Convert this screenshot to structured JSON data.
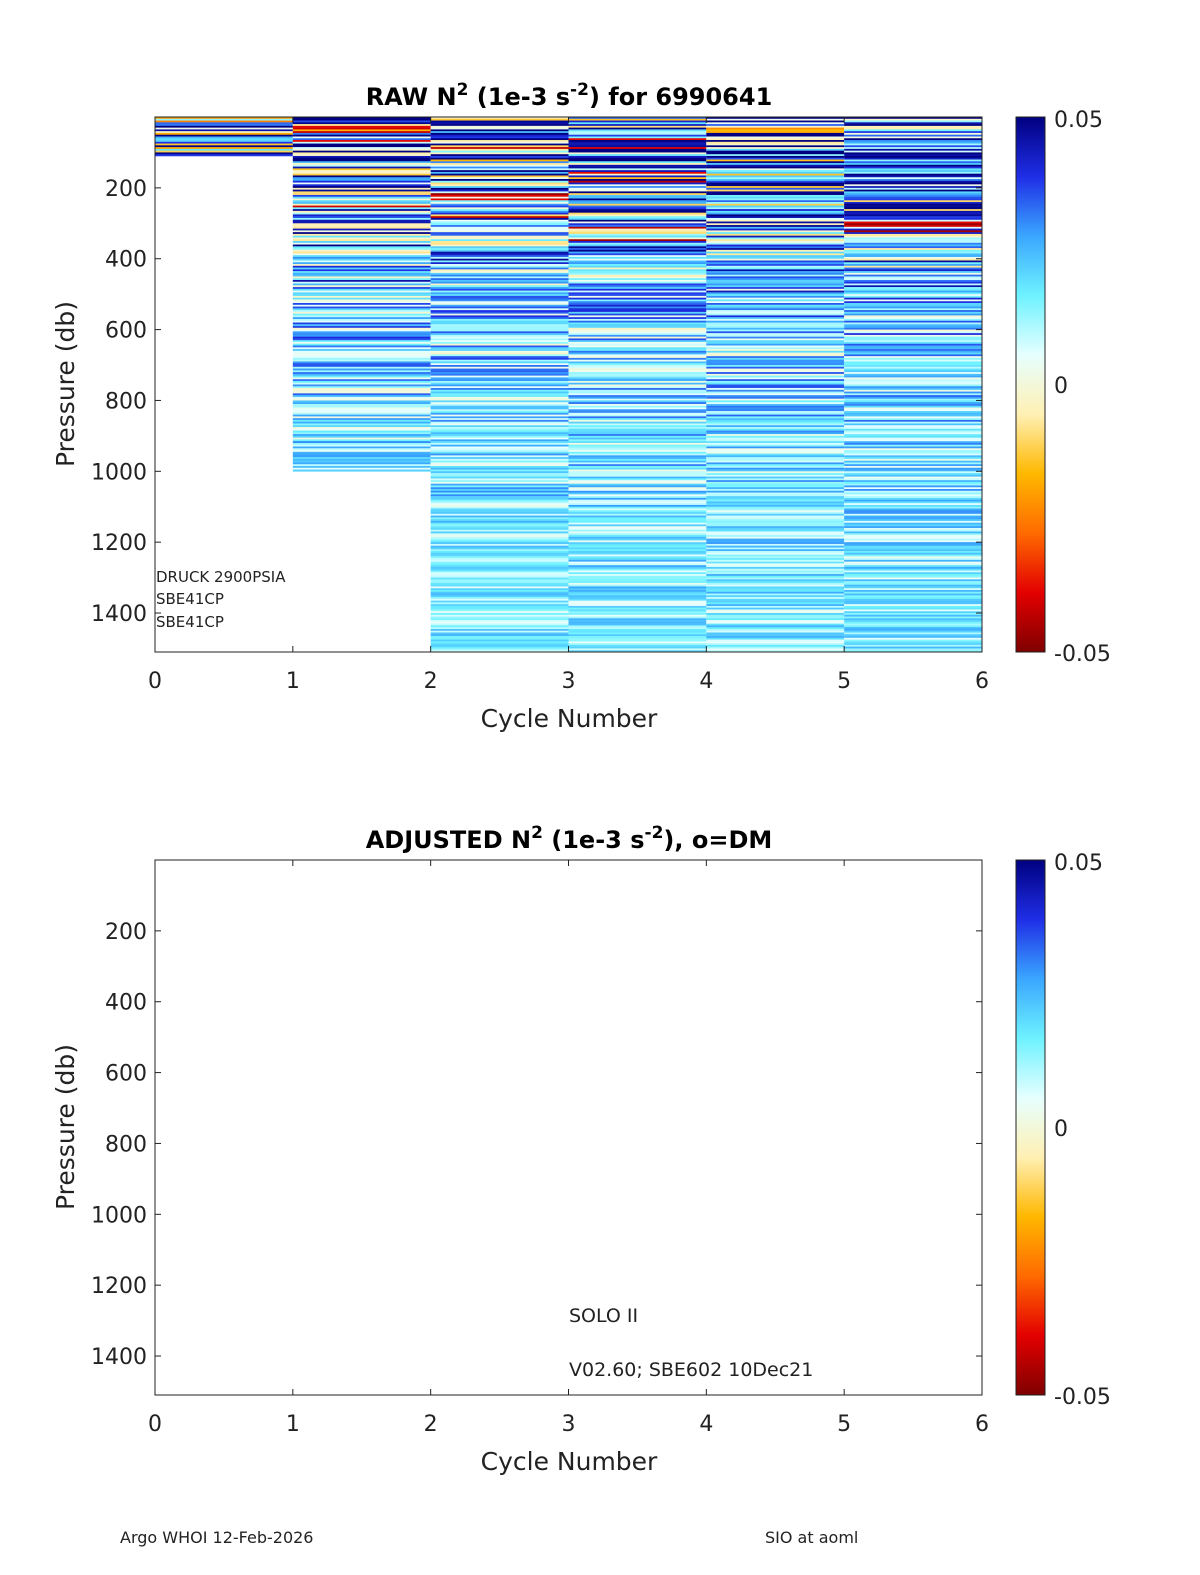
{
  "footer": {
    "left": "Argo WHOI 12-Feb-2026",
    "right": "SIO at aoml"
  },
  "colorbar": {
    "max_label": "0.05",
    "mid_label": "0",
    "min_label": "-0.05",
    "colormap": [
      "#7f0000",
      "#e30000",
      "#ff6a00",
      "#ffb800",
      "#fff0b4",
      "#e6ffff",
      "#6ef2ff",
      "#3aa6ff",
      "#1f2ee6",
      "#000080"
    ]
  },
  "chart_data": [
    {
      "type": "heatmap",
      "title_parts": [
        "RAW N",
        "2",
        " (1e-3 s",
        "-2",
        ") for 6990641"
      ],
      "xlabel": "Cycle Number",
      "ylabel": "Pressure (db)",
      "xlim": [
        0,
        6
      ],
      "ylim": [
        0,
        1510
      ],
      "y_reversed": true,
      "x_ticks": [
        "0",
        "1",
        "2",
        "3",
        "4",
        "5",
        "6"
      ],
      "y_ticks": [
        "200",
        "400",
        "600",
        "800",
        "1000",
        "1200",
        "1400"
      ],
      "clim": [
        -0.05,
        0.05
      ],
      "columns": [
        {
          "cycle": 1,
          "x_range": [
            0,
            1
          ],
          "max_pressure": 110
        },
        {
          "cycle": 2,
          "x_range": [
            1,
            2
          ],
          "max_pressure": 1000
        },
        {
          "cycle": 3,
          "x_range": [
            2,
            3
          ],
          "max_pressure": 1510
        },
        {
          "cycle": 4,
          "x_range": [
            3,
            4
          ],
          "max_pressure": 1510
        },
        {
          "cycle": 5,
          "x_range": [
            4,
            5
          ],
          "max_pressure": 1510
        },
        {
          "cycle": 6,
          "x_range": [
            5,
            6
          ],
          "max_pressure": 1510
        }
      ],
      "annotations": [
        "DRUCK 2900PSIA",
        "SBE41CP",
        "SBE41CP"
      ]
    },
    {
      "type": "heatmap",
      "title_parts": [
        "ADJUSTED N",
        "2",
        " (1e-3 s",
        "-2",
        "), o=DM"
      ],
      "xlabel": "Cycle Number",
      "ylabel": "Pressure (db)",
      "xlim": [
        0,
        6
      ],
      "ylim": [
        0,
        1510
      ],
      "y_reversed": true,
      "x_ticks": [
        "0",
        "1",
        "2",
        "3",
        "4",
        "5",
        "6"
      ],
      "y_ticks": [
        "200",
        "400",
        "600",
        "800",
        "1000",
        "1200",
        "1400"
      ],
      "clim": [
        -0.05,
        0.05
      ],
      "columns": [],
      "annotations": [
        "SOLO II",
        "V02.60; SBE602 10Dec21"
      ]
    }
  ]
}
